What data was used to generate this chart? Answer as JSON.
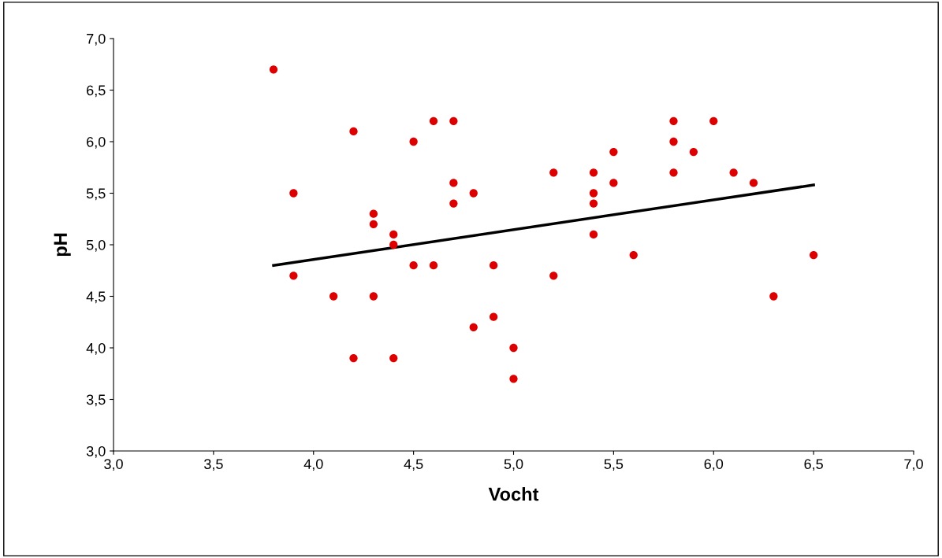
{
  "chart_data": {
    "type": "scatter",
    "xlabel": "Vocht",
    "ylabel": "pH",
    "xlim": [
      3.0,
      7.0
    ],
    "ylim": [
      3.0,
      7.0
    ],
    "xticks": [
      {
        "value": 3.0,
        "label": "3,0"
      },
      {
        "value": 3.5,
        "label": "3,5"
      },
      {
        "value": 4.0,
        "label": "4,0"
      },
      {
        "value": 4.5,
        "label": "4,5"
      },
      {
        "value": 5.0,
        "label": "5,0"
      },
      {
        "value": 5.5,
        "label": "5,5"
      },
      {
        "value": 6.0,
        "label": "6,0"
      },
      {
        "value": 6.5,
        "label": "6,5"
      },
      {
        "value": 7.0,
        "label": "7,0"
      }
    ],
    "yticks": [
      {
        "value": 3.0,
        "label": "3,0"
      },
      {
        "value": 3.5,
        "label": "3,5"
      },
      {
        "value": 4.0,
        "label": "4,0"
      },
      {
        "value": 4.5,
        "label": "4,5"
      },
      {
        "value": 5.0,
        "label": "5,0"
      },
      {
        "value": 5.5,
        "label": "5,5"
      },
      {
        "value": 6.0,
        "label": "6,0"
      },
      {
        "value": 6.5,
        "label": "6,5"
      },
      {
        "value": 7.0,
        "label": "7,0"
      }
    ],
    "grid": false,
    "series": [
      {
        "marker": "circle",
        "color": "#dd0000",
        "x": [
          3.8,
          3.9,
          3.9,
          4.1,
          4.2,
          4.2,
          4.3,
          4.3,
          4.3,
          4.4,
          4.4,
          4.4,
          4.5,
          4.5,
          4.6,
          4.6,
          4.7,
          4.7,
          4.7,
          4.8,
          4.8,
          4.9,
          4.9,
          5.0,
          5.0,
          5.2,
          5.2,
          5.4,
          5.4,
          5.4,
          5.4,
          5.5,
          5.5,
          5.6,
          5.8,
          5.8,
          5.8,
          5.9,
          6.0,
          6.1,
          6.2,
          6.3,
          6.5
        ],
        "values": [
          6.7,
          5.5,
          4.7,
          4.5,
          6.1,
          3.9,
          5.3,
          5.2,
          4.5,
          5.1,
          5.0,
          3.9,
          6.0,
          4.8,
          6.2,
          4.8,
          6.2,
          5.6,
          5.4,
          5.5,
          4.2,
          4.8,
          4.3,
          4.0,
          3.7,
          5.7,
          4.7,
          5.7,
          5.5,
          5.4,
          5.1,
          5.9,
          5.6,
          4.9,
          6.2,
          6.0,
          5.7,
          5.9,
          6.2,
          5.7,
          5.6,
          4.5,
          4.9
        ]
      },
      {
        "type": "line",
        "marker": "none",
        "color": "#000000",
        "x": [
          3.8,
          6.5
        ],
        "values": [
          4.8,
          5.58
        ]
      }
    ]
  }
}
